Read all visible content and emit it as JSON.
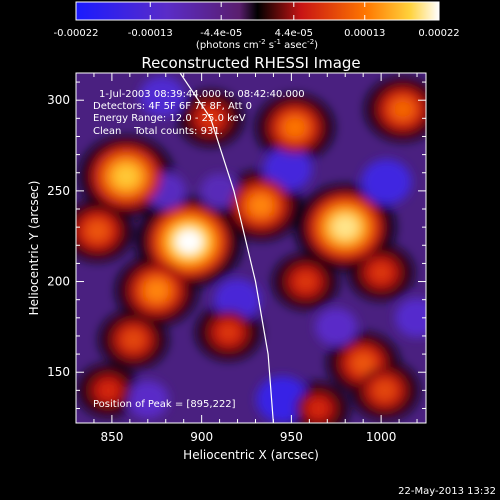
{
  "chart_data": {
    "type": "heatmap",
    "title": "Reconstructed RHESSI Image",
    "xlabel": "Heliocentric X (arcsec)",
    "ylabel": "Heliocentric Y (arcsec)",
    "xlim": [
      830,
      1025
    ],
    "ylim": [
      122,
      315
    ],
    "x_ticks": [
      850,
      900,
      950,
      1000
    ],
    "y_ticks": [
      150,
      200,
      250,
      300
    ],
    "colorbar": {
      "range": [
        -0.00022,
        0.00022
      ],
      "tick_values": [
        -0.00022,
        -0.00013,
        -4.4e-05,
        4.4e-05,
        0.00013,
        0.00022
      ],
      "tick_labels": [
        "-0.00022",
        "-0.00013",
        "-4.4e-05",
        "4.4e-05",
        "0.00013",
        "0.00022"
      ],
      "units_prefix": "(photons cm",
      "units_exp1": "-2",
      "units_mid1": " s",
      "units_exp2": "-1",
      "units_mid2": " asec",
      "units_exp3": "-2",
      "units_suffix": ")"
    },
    "annotations": [
      "1-Jul-2003 08:39:44.000 to 08:42:40.000",
      "Detectors: 4F 5F 6F 7F 8F, Att 0",
      "Energy Range: 12.0 - 25.0 keV",
      "Clean    Total counts: 931."
    ],
    "peak_label": "Position of Peak = [895,222]",
    "peak": [
      895,
      222
    ],
    "hot_spots": [
      {
        "x": 893,
        "y": 222,
        "value": 0.00022
      },
      {
        "x": 858,
        "y": 258,
        "value": 0.00018
      },
      {
        "x": 980,
        "y": 230,
        "value": 0.0002
      },
      {
        "x": 875,
        "y": 195,
        "value": 0.00014
      },
      {
        "x": 933,
        "y": 242,
        "value": 0.00014
      },
      {
        "x": 952,
        "y": 285,
        "value": 0.00013
      },
      {
        "x": 1012,
        "y": 295,
        "value": 0.00012
      },
      {
        "x": 842,
        "y": 228,
        "value": 0.00011
      },
      {
        "x": 862,
        "y": 168,
        "value": 0.0001
      },
      {
        "x": 915,
        "y": 172,
        "value": 9e-05
      },
      {
        "x": 1000,
        "y": 205,
        "value": 9e-05
      },
      {
        "x": 958,
        "y": 200,
        "value": 9e-05
      },
      {
        "x": 990,
        "y": 155,
        "value": 0.00011
      },
      {
        "x": 1002,
        "y": 140,
        "value": 0.0001
      },
      {
        "x": 905,
        "y": 290,
        "value": 9e-05
      },
      {
        "x": 848,
        "y": 140,
        "value": 8e-05
      },
      {
        "x": 965,
        "y": 130,
        "value": 8e-05
      }
    ],
    "cold_spots": [
      {
        "x": 878,
        "y": 302,
        "value": -0.00013
      },
      {
        "x": 948,
        "y": 262,
        "value": -0.00015
      },
      {
        "x": 1003,
        "y": 255,
        "value": -0.00016
      },
      {
        "x": 920,
        "y": 190,
        "value": -0.00014
      },
      {
        "x": 945,
        "y": 135,
        "value": -0.00017
      },
      {
        "x": 1020,
        "y": 180,
        "value": -0.00012
      },
      {
        "x": 880,
        "y": 250,
        "value": -0.0001
      },
      {
        "x": 870,
        "y": 135,
        "value": -0.00011
      },
      {
        "x": 975,
        "y": 175,
        "value": -0.00011
      },
      {
        "x": 910,
        "y": 250,
        "value": -9e-05
      }
    ],
    "limb_curve": [
      [
        888,
        315
      ],
      [
        905,
        290
      ],
      [
        918,
        250
      ],
      [
        930,
        200
      ],
      [
        937,
        160
      ],
      [
        940,
        122
      ]
    ],
    "date_stamp": "22-May-2013 13:32"
  }
}
